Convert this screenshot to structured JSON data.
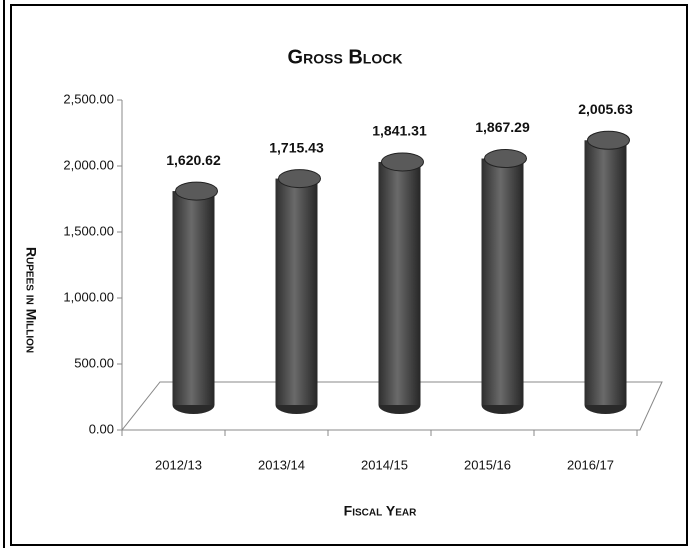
{
  "chart_data": {
    "type": "bar",
    "title": "Gross Block",
    "y_label": "Rupees in Million",
    "x_label": "Fiscal Year",
    "categories": [
      "2012/13",
      "2013/14",
      "2014/15",
      "2015/16",
      "2016/17"
    ],
    "values": [
      1620.62,
      1715.43,
      1841.31,
      1867.29,
      2005.63
    ],
    "value_labels": [
      "1,620.62",
      "1,715.43",
      "1,841.31",
      "1,867.29",
      "2,005.63"
    ],
    "color": "#4a4a4a",
    "ylim": [
      0,
      2500
    ],
    "yticks": [
      {
        "value": 0,
        "label": "0.00"
      },
      {
        "value": 500,
        "label": "500.00"
      },
      {
        "value": 1000,
        "label": "1,000.00"
      },
      {
        "value": 1500,
        "label": "1,500.00"
      },
      {
        "value": 2000,
        "label": "2,000.00"
      },
      {
        "value": 2500,
        "label": "2,500.00"
      }
    ]
  }
}
